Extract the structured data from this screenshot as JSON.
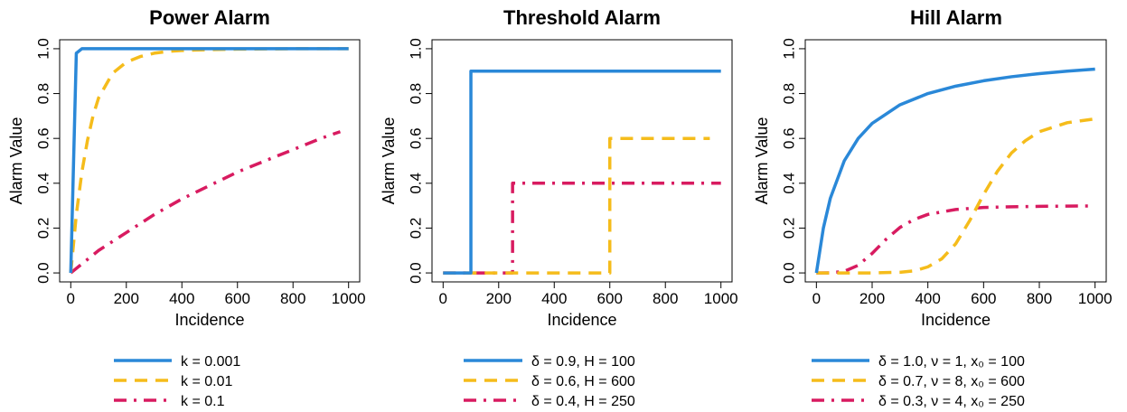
{
  "chart_data": [
    {
      "type": "line",
      "title": "Power Alarm",
      "xlabel": "Incidence",
      "ylabel": "Alarm Value",
      "xlim": [
        0,
        1000
      ],
      "ylim": [
        0,
        1
      ],
      "xticks": [
        "0",
        "200",
        "400",
        "600",
        "800",
        "1000"
      ],
      "yticks": [
        "0.0",
        "0.2",
        "0.4",
        "0.6",
        "0.8",
        "1.0"
      ],
      "legend_position": "bottom",
      "series": [
        {
          "name": "k = 0.001",
          "color": "#2A88D8",
          "dash": "solid",
          "x": [
            0,
            20,
            40,
            60,
            80,
            100,
            150,
            200,
            300,
            400,
            500,
            600,
            700,
            800,
            900,
            1000
          ],
          "y": [
            0,
            0.98,
            1,
            1,
            1,
            1,
            1,
            1,
            1,
            1,
            1,
            1,
            1,
            1,
            1,
            1
          ]
        },
        {
          "name": "k = 0.01",
          "color": "#F5BC1B",
          "dash": "dashed",
          "x": [
            0,
            20,
            40,
            60,
            80,
            100,
            150,
            200,
            250,
            300,
            350,
            400,
            500,
            600,
            700,
            800,
            900,
            1000
          ],
          "y": [
            0,
            0.26,
            0.45,
            0.59,
            0.7,
            0.78,
            0.89,
            0.94,
            0.965,
            0.98,
            0.988,
            0.992,
            0.996,
            0.998,
            0.999,
            1,
            1,
            1
          ]
        },
        {
          "name": "k = 0.1",
          "color": "#D81B60",
          "dash": "dashdot",
          "x": [
            0,
            50,
            100,
            150,
            200,
            300,
            400,
            500,
            600,
            700,
            800,
            900,
            970
          ],
          "y": [
            0,
            0.05,
            0.1,
            0.14,
            0.18,
            0.26,
            0.33,
            0.39,
            0.45,
            0.5,
            0.55,
            0.6,
            0.63
          ]
        }
      ]
    },
    {
      "type": "line",
      "title": "Threshold Alarm",
      "xlabel": "Incidence",
      "ylabel": "Alarm Value",
      "xlim": [
        0,
        1000
      ],
      "ylim": [
        0,
        1
      ],
      "xticks": [
        "0",
        "200",
        "400",
        "600",
        "800",
        "1000"
      ],
      "yticks": [
        "0.0",
        "0.2",
        "0.4",
        "0.6",
        "0.8",
        "1.0"
      ],
      "legend_position": "bottom",
      "series": [
        {
          "name": "δ = 0.9, H = 100",
          "color": "#2A88D8",
          "dash": "solid",
          "x": [
            0,
            100,
            100,
            1000
          ],
          "y": [
            0,
            0,
            0.9,
            0.9
          ]
        },
        {
          "name": "δ = 0.6, H = 600",
          "color": "#F5BC1B",
          "dash": "dashed",
          "x": [
            0,
            600,
            600,
            960
          ],
          "y": [
            0,
            0,
            0.6,
            0.6
          ]
        },
        {
          "name": "δ = 0.4, H = 250",
          "color": "#D81B60",
          "dash": "dashdot",
          "x": [
            0,
            250,
            250,
            1000
          ],
          "y": [
            0,
            0,
            0.4,
            0.4
          ]
        }
      ]
    },
    {
      "type": "line",
      "title": "Hill Alarm",
      "xlabel": "Incidence",
      "ylabel": "Alarm Value",
      "xlim": [
        0,
        1000
      ],
      "ylim": [
        0,
        1
      ],
      "xticks": [
        "0",
        "200",
        "400",
        "600",
        "800",
        "1000"
      ],
      "yticks": [
        "0.0",
        "0.2",
        "0.4",
        "0.6",
        "0.8",
        "1.0"
      ],
      "legend_position": "bottom",
      "series": [
        {
          "name": "δ = 1.0, ν = 1, x₀ = 100",
          "color": "#2A88D8",
          "dash": "solid",
          "x": [
            0,
            25,
            50,
            100,
            150,
            200,
            300,
            400,
            500,
            600,
            700,
            800,
            900,
            1000
          ],
          "y": [
            0,
            0.2,
            0.333,
            0.5,
            0.6,
            0.667,
            0.75,
            0.8,
            0.833,
            0.857,
            0.875,
            0.889,
            0.9,
            0.909
          ]
        },
        {
          "name": "δ = 0.7, ν = 8, x₀ = 600",
          "color": "#F5BC1B",
          "dash": "dashed",
          "x": [
            0,
            200,
            300,
            350,
            400,
            450,
            500,
            550,
            600,
            650,
            700,
            750,
            800,
            900,
            1000
          ],
          "y": [
            0,
            0,
            0.003,
            0.009,
            0.027,
            0.063,
            0.13,
            0.233,
            0.35,
            0.454,
            0.535,
            0.59,
            0.63,
            0.67,
            0.687
          ]
        },
        {
          "name": "δ = 0.3, ν = 4, x₀ = 250",
          "color": "#D81B60",
          "dash": "dashdot",
          "x": [
            0,
            50,
            100,
            150,
            200,
            250,
            300,
            350,
            400,
            500,
            600,
            700,
            800,
            900,
            1000
          ],
          "y": [
            0,
            0.0005,
            0.007,
            0.034,
            0.087,
            0.15,
            0.203,
            0.238,
            0.261,
            0.283,
            0.292,
            0.295,
            0.297,
            0.298,
            0.299
          ]
        }
      ]
    }
  ]
}
